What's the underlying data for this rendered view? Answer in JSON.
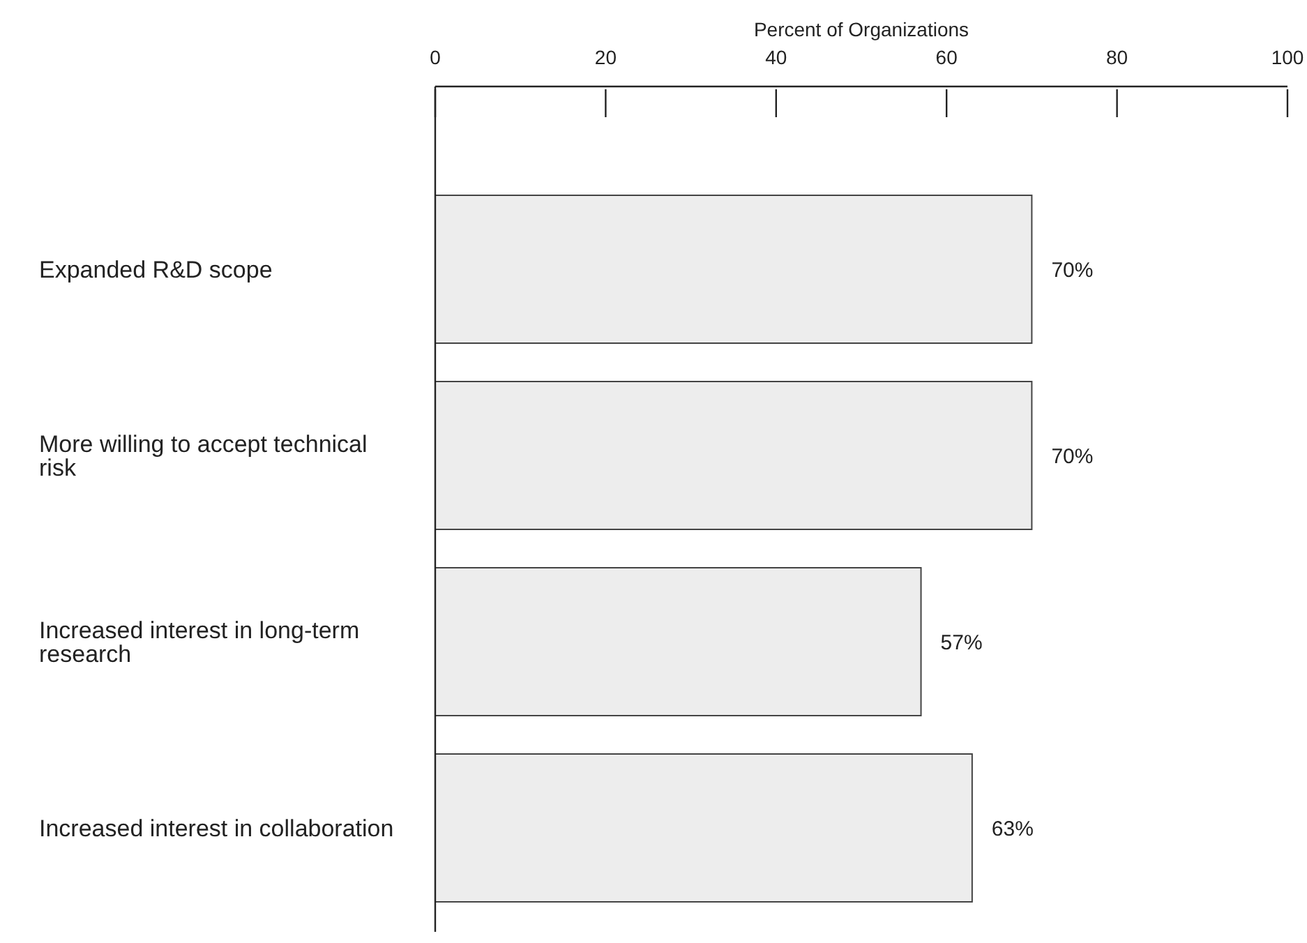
{
  "chart_data": {
    "type": "bar",
    "orientation": "horizontal",
    "xlabel": "Percent of Organizations",
    "categories": [
      "Expanded R&D scope",
      "More willing to accept technical risk",
      "Increased interest in long-term research",
      "Increased interest in collaboration"
    ],
    "values": [
      70,
      70,
      57,
      63
    ],
    "value_labels": [
      "70%",
      "70%",
      "57%",
      "63%"
    ],
    "color": "#ededed",
    "xlim": [
      0,
      100
    ],
    "xticks": [
      0,
      20,
      40,
      60,
      80,
      100
    ],
    "grid": false,
    "legend": false
  }
}
